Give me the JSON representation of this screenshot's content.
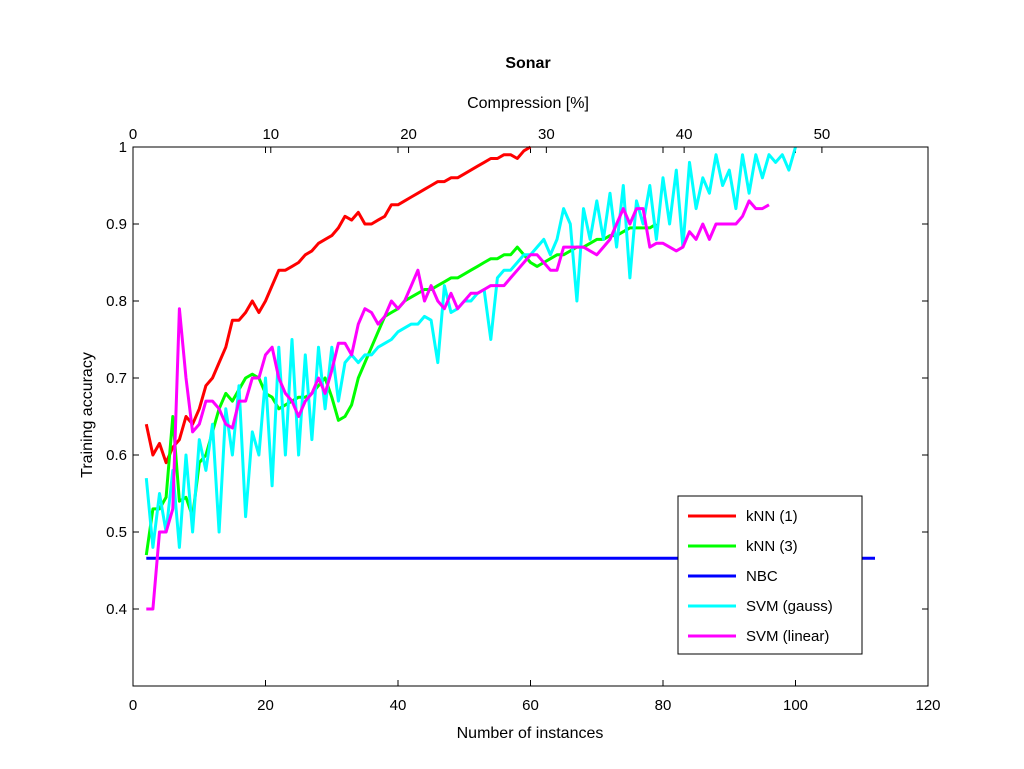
{
  "chart_data": {
    "type": "line",
    "title": "Sonar",
    "xlabel": "Number of instances",
    "ylabel": "Training accuracy",
    "x2label": "Compression [%]",
    "xlim": [
      0,
      120
    ],
    "ylim": [
      0.3,
      1.0
    ],
    "x2lim": [
      0,
      57.7
    ],
    "xticks": [
      0,
      20,
      40,
      60,
      80,
      100,
      120
    ],
    "yticks": [
      0.4,
      0.5,
      0.6,
      0.7,
      0.8,
      0.9,
      1.0
    ],
    "x2ticks": [
      0,
      10,
      20,
      30,
      40,
      50
    ],
    "xtick_labels": [
      "0",
      "20",
      "40",
      "60",
      "80",
      "100",
      "120"
    ],
    "ytick_labels": [
      "0.4",
      "0.5",
      "0.6",
      "0.7",
      "0.8",
      "0.9",
      "1"
    ],
    "x2tick_labels": [
      "0",
      "10",
      "20",
      "30",
      "40",
      "50"
    ],
    "grid": false,
    "legend_position": "bottom-right",
    "series": [
      {
        "name": "kNN (1)",
        "color": "#ff0000",
        "x": [
          2,
          3,
          4,
          5,
          6,
          7,
          8,
          9,
          10,
          11,
          12,
          13,
          14,
          15,
          16,
          17,
          18,
          19,
          20,
          21,
          22,
          23,
          24,
          25,
          26,
          27,
          28,
          29,
          30,
          31,
          32,
          33,
          34,
          35,
          36,
          37,
          38,
          39,
          40,
          41,
          42,
          43,
          44,
          45,
          46,
          47,
          48,
          49,
          50,
          51,
          52,
          53,
          54,
          55,
          56,
          57,
          58,
          59,
          60
        ],
        "y": [
          0.64,
          0.6,
          0.615,
          0.59,
          0.61,
          0.62,
          0.65,
          0.64,
          0.66,
          0.69,
          0.7,
          0.72,
          0.74,
          0.775,
          0.775,
          0.785,
          0.8,
          0.785,
          0.8,
          0.82,
          0.84,
          0.84,
          0.845,
          0.85,
          0.86,
          0.865,
          0.875,
          0.88,
          0.885,
          0.895,
          0.91,
          0.905,
          0.915,
          0.9,
          0.9,
          0.905,
          0.91,
          0.925,
          0.925,
          0.93,
          0.935,
          0.94,
          0.945,
          0.95,
          0.955,
          0.955,
          0.96,
          0.96,
          0.965,
          0.97,
          0.975,
          0.98,
          0.985,
          0.985,
          0.99,
          0.99,
          0.985,
          0.995,
          1.0
        ]
      },
      {
        "name": "kNN (3)",
        "color": "#00ff00",
        "x": [
          2,
          3,
          4,
          5,
          6,
          7,
          8,
          9,
          10,
          11,
          12,
          13,
          14,
          15,
          16,
          17,
          18,
          19,
          20,
          21,
          22,
          23,
          24,
          25,
          26,
          27,
          28,
          29,
          30,
          31,
          32,
          33,
          34,
          35,
          36,
          37,
          38,
          39,
          40,
          41,
          42,
          43,
          44,
          45,
          46,
          47,
          48,
          49,
          50,
          51,
          52,
          53,
          54,
          55,
          56,
          57,
          58,
          59,
          60,
          61,
          62,
          63,
          64,
          65,
          66,
          67,
          68,
          69,
          70,
          71,
          72,
          73,
          74,
          75,
          76,
          77,
          78,
          79
        ],
        "y": [
          0.47,
          0.53,
          0.53,
          0.545,
          0.65,
          0.54,
          0.545,
          0.52,
          0.59,
          0.6,
          0.63,
          0.66,
          0.68,
          0.67,
          0.685,
          0.7,
          0.705,
          0.7,
          0.68,
          0.675,
          0.66,
          0.665,
          0.67,
          0.675,
          0.675,
          0.68,
          0.69,
          0.7,
          0.675,
          0.645,
          0.65,
          0.665,
          0.7,
          0.72,
          0.74,
          0.76,
          0.78,
          0.785,
          0.79,
          0.8,
          0.805,
          0.81,
          0.815,
          0.815,
          0.82,
          0.825,
          0.83,
          0.83,
          0.835,
          0.84,
          0.845,
          0.85,
          0.855,
          0.855,
          0.86,
          0.86,
          0.87,
          0.86,
          0.85,
          0.845,
          0.85,
          0.855,
          0.86,
          0.86,
          0.865,
          0.87,
          0.87,
          0.875,
          0.88,
          0.88,
          0.885,
          0.885,
          0.89,
          0.895,
          0.895,
          0.895,
          0.895,
          0.9
        ]
      },
      {
        "name": "NBC",
        "color": "#0000ff",
        "x": [
          2,
          112
        ],
        "y": [
          0.466,
          0.466
        ]
      },
      {
        "name": "SVM (gauss)",
        "color": "#00ffff",
        "x": [
          2,
          3,
          4,
          5,
          6,
          7,
          8,
          9,
          10,
          11,
          12,
          13,
          14,
          15,
          16,
          17,
          18,
          19,
          20,
          21,
          22,
          23,
          24,
          25,
          26,
          27,
          28,
          29,
          30,
          31,
          32,
          33,
          34,
          35,
          36,
          37,
          38,
          39,
          40,
          41,
          42,
          43,
          44,
          45,
          46,
          47,
          48,
          49,
          50,
          51,
          52,
          53,
          54,
          55,
          56,
          57,
          58,
          59,
          60,
          61,
          62,
          63,
          64,
          65,
          66,
          67,
          68,
          69,
          70,
          71,
          72,
          73,
          74,
          75,
          76,
          77,
          78,
          79,
          80,
          81,
          82,
          83,
          84,
          85,
          86,
          87,
          88,
          89,
          90,
          91,
          92,
          93,
          94,
          95,
          96,
          97,
          98,
          99,
          100
        ],
        "y": [
          0.57,
          0.48,
          0.55,
          0.5,
          0.58,
          0.48,
          0.6,
          0.5,
          0.62,
          0.58,
          0.64,
          0.5,
          0.66,
          0.6,
          0.69,
          0.52,
          0.63,
          0.6,
          0.7,
          0.56,
          0.74,
          0.6,
          0.75,
          0.6,
          0.73,
          0.62,
          0.74,
          0.66,
          0.74,
          0.67,
          0.72,
          0.73,
          0.72,
          0.73,
          0.73,
          0.74,
          0.745,
          0.75,
          0.76,
          0.765,
          0.77,
          0.77,
          0.78,
          0.775,
          0.72,
          0.82,
          0.785,
          0.79,
          0.8,
          0.8,
          0.81,
          0.815,
          0.75,
          0.83,
          0.84,
          0.84,
          0.85,
          0.86,
          0.86,
          0.87,
          0.88,
          0.86,
          0.88,
          0.92,
          0.9,
          0.8,
          0.92,
          0.88,
          0.93,
          0.88,
          0.94,
          0.87,
          0.95,
          0.83,
          0.93,
          0.9,
          0.95,
          0.88,
          0.96,
          0.9,
          0.97,
          0.87,
          0.98,
          0.92,
          0.96,
          0.94,
          0.99,
          0.95,
          0.97,
          0.92,
          0.99,
          0.94,
          0.99,
          0.96,
          0.99,
          0.98,
          0.99,
          0.97,
          1.0
        ]
      },
      {
        "name": "SVM (linear)",
        "color": "#ff00ff",
        "x": [
          2,
          3,
          4,
          5,
          6,
          7,
          8,
          9,
          10,
          11,
          12,
          13,
          14,
          15,
          16,
          17,
          18,
          19,
          20,
          21,
          22,
          23,
          24,
          25,
          26,
          27,
          28,
          29,
          30,
          31,
          32,
          33,
          34,
          35,
          36,
          37,
          38,
          39,
          40,
          41,
          42,
          43,
          44,
          45,
          46,
          47,
          48,
          49,
          50,
          51,
          52,
          53,
          54,
          55,
          56,
          57,
          58,
          59,
          60,
          61,
          62,
          63,
          64,
          65,
          66,
          67,
          68,
          69,
          70,
          71,
          72,
          73,
          74,
          75,
          76,
          77,
          78,
          79,
          80,
          81,
          82,
          83,
          84,
          85,
          86,
          87,
          88,
          89,
          90,
          91,
          92,
          93,
          94,
          95,
          96
        ],
        "y": [
          0.4,
          0.4,
          0.5,
          0.5,
          0.53,
          0.79,
          0.7,
          0.63,
          0.64,
          0.67,
          0.67,
          0.66,
          0.64,
          0.635,
          0.67,
          0.67,
          0.7,
          0.7,
          0.73,
          0.74,
          0.7,
          0.68,
          0.67,
          0.65,
          0.67,
          0.68,
          0.7,
          0.68,
          0.71,
          0.745,
          0.745,
          0.73,
          0.77,
          0.79,
          0.785,
          0.77,
          0.78,
          0.8,
          0.79,
          0.8,
          0.82,
          0.84,
          0.8,
          0.82,
          0.8,
          0.79,
          0.81,
          0.79,
          0.8,
          0.81,
          0.81,
          0.815,
          0.82,
          0.82,
          0.82,
          0.83,
          0.84,
          0.85,
          0.86,
          0.86,
          0.85,
          0.84,
          0.84,
          0.87,
          0.87,
          0.87,
          0.87,
          0.865,
          0.86,
          0.87,
          0.88,
          0.9,
          0.92,
          0.9,
          0.92,
          0.92,
          0.87,
          0.875,
          0.875,
          0.87,
          0.865,
          0.87,
          0.89,
          0.88,
          0.9,
          0.88,
          0.9,
          0.9,
          0.9,
          0.9,
          0.91,
          0.93,
          0.92,
          0.92,
          0.925
        ]
      }
    ]
  }
}
